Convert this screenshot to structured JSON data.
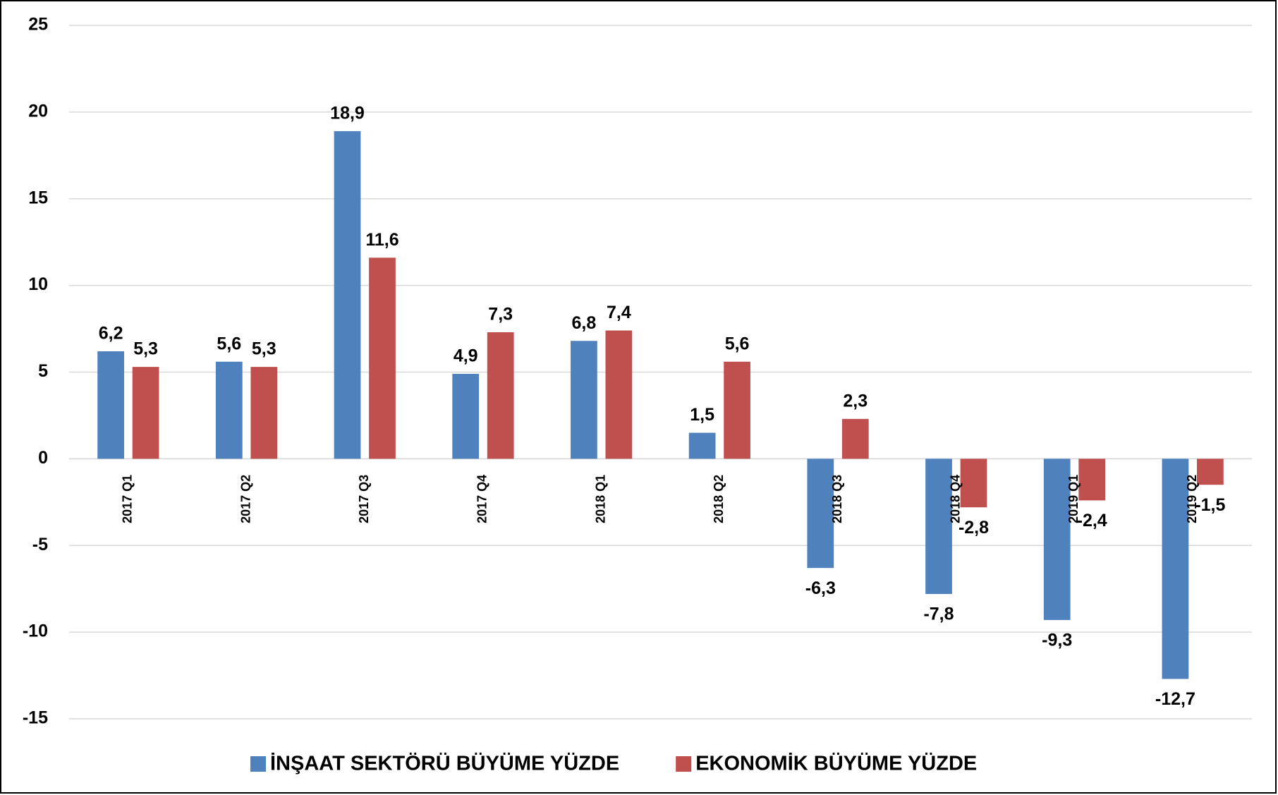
{
  "chart_data": {
    "type": "bar",
    "categories": [
      "2017 Q1",
      "2017 Q2",
      "2017 Q3",
      "2017 Q4",
      "2018 Q1",
      "2018 Q2",
      "2018 Q3",
      "2018 Q4",
      "2019 Q1",
      "2019 Q2"
    ],
    "series": [
      {
        "name": "İNŞAAT SEKTÖRÜ BÜYÜME YÜZDE",
        "color": "#4f81bd",
        "values": [
          6.2,
          5.6,
          18.9,
          4.9,
          6.8,
          1.5,
          -6.3,
          -7.8,
          -9.3,
          -12.7
        ],
        "value_labels": [
          "6,2",
          "5,6",
          "18,9",
          "4,9",
          "6,8",
          "1,5",
          "-6,3",
          "-7,8",
          "-9,3",
          "-12,7"
        ]
      },
      {
        "name": "EKONOMİK BÜYÜME YÜZDE",
        "color": "#c0504d",
        "values": [
          5.3,
          5.3,
          11.6,
          7.3,
          7.4,
          5.6,
          2.3,
          -2.8,
          -2.4,
          -1.5
        ],
        "value_labels": [
          "5,3",
          "5,3",
          "11,6",
          "7,3",
          "7,4",
          "5,6",
          "2,3",
          "-2,8",
          "-2,4",
          "-1,5"
        ]
      }
    ],
    "ylim": [
      -15,
      25
    ],
    "yticks": [
      -15,
      -10,
      -5,
      0,
      5,
      10,
      15,
      20,
      25
    ],
    "grid": true,
    "legend": "bottom"
  }
}
